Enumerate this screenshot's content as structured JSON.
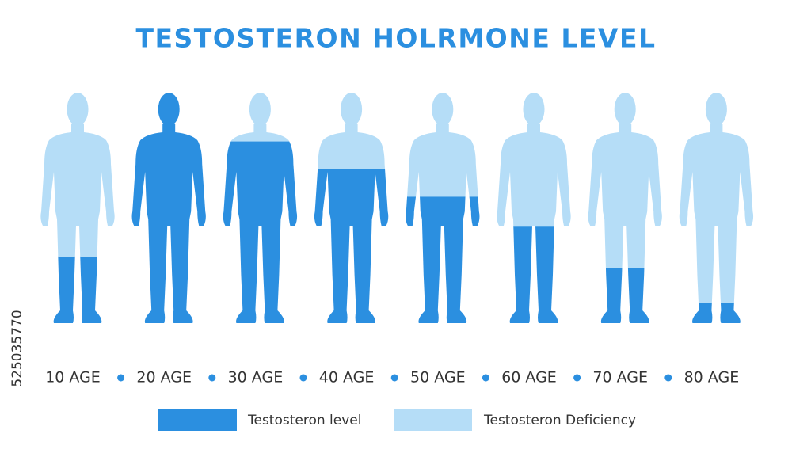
{
  "chart_data": {
    "type": "bar",
    "stacked": true,
    "title": "TESTOSTERON HOLRMONE LEVEL",
    "side_text": "525035770",
    "categories": [
      "10 AGE",
      "20 AGE",
      "30 AGE",
      "40 AGE",
      "50 AGE",
      "60 AGE",
      "70 AGE",
      "80 AGE"
    ],
    "series": [
      {
        "name": "Testosteron level",
        "color": "#2b8fe0",
        "values": [
          29,
          100,
          79,
          67,
          55,
          42,
          24,
          9
        ]
      },
      {
        "name": "Testosteron Deficiency",
        "color": "#b5ddf7",
        "values": [
          71,
          0,
          21,
          33,
          45,
          58,
          76,
          91
        ]
      }
    ],
    "ylim": [
      0,
      100
    ]
  }
}
